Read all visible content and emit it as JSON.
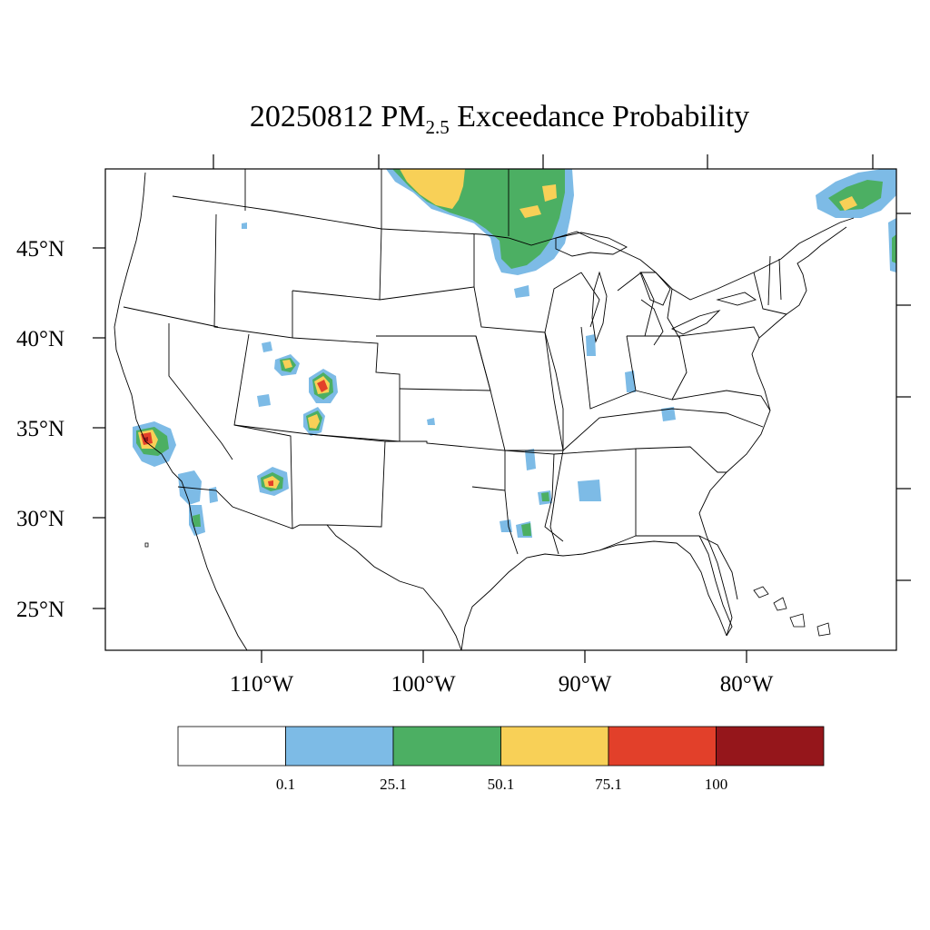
{
  "title": {
    "date": "20250812",
    "pm": "PM",
    "pm_sub": "2.5",
    "rest": " Exceedance Probability"
  },
  "axes": {
    "lat_labels": [
      "45°N",
      "40°N",
      "35°N",
      "30°N",
      "25°N"
    ],
    "lon_labels": [
      "110°W",
      "100°W",
      "90°W",
      "80°W"
    ]
  },
  "colorbar": {
    "tick_labels": [
      "0.1",
      "25.1",
      "50.1",
      "75.1",
      "100"
    ],
    "colors": [
      "#ffffff",
      "#7dbbe6",
      "#4caf63",
      "#f8d057",
      "#e2402a",
      "#95161b"
    ]
  },
  "map_colors": {
    "light": "#7dbbe6",
    "green": "#4caf63",
    "yellow": "#f8d057",
    "red": "#e2402a",
    "darkred": "#95161b"
  }
}
